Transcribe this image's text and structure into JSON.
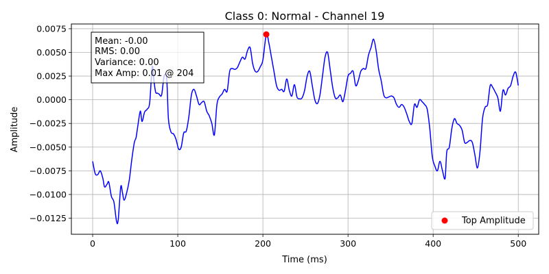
{
  "chart_data": {
    "type": "line",
    "title": "Class 0: Normal - Channel 19",
    "xlabel": "Time (ms)",
    "ylabel": "Amplitude",
    "xlim": [
      -25,
      524
    ],
    "ylim": [
      -0.0142,
      0.008
    ],
    "grid": true,
    "x_ticks": [
      0,
      100,
      200,
      300,
      400,
      500
    ],
    "x_tick_labels": [
      "0",
      "100",
      "200",
      "300",
      "400",
      "500"
    ],
    "y_ticks": [
      -0.0125,
      -0.01,
      -0.0075,
      -0.005,
      -0.0025,
      0.0,
      0.0025,
      0.005,
      0.0075
    ],
    "y_tick_labels": [
      "−0.0125",
      "−0.0100",
      "−0.0075",
      "−0.0050",
      "−0.0025",
      "0.0000",
      "0.0025",
      "0.0050",
      "0.0075"
    ],
    "line_color": "#0000ff",
    "series": [
      {
        "points": [
          [
            0,
            -0.0065
          ],
          [
            3,
            -0.0078
          ],
          [
            6,
            -0.0079
          ],
          [
            9,
            -0.0075
          ],
          [
            12,
            -0.0083
          ],
          [
            14,
            -0.0092
          ],
          [
            17,
            -0.0089
          ],
          [
            19,
            -0.0087
          ],
          [
            22,
            -0.0102
          ],
          [
            25,
            -0.0108
          ],
          [
            28,
            -0.0128
          ],
          [
            30,
            -0.0127
          ],
          [
            33,
            -0.0092
          ],
          [
            35,
            -0.0098
          ],
          [
            37,
            -0.0106
          ],
          [
            40,
            -0.0098
          ],
          [
            43,
            -0.0085
          ],
          [
            46,
            -0.0063
          ],
          [
            49,
            -0.0045
          ],
          [
            51,
            -0.004
          ],
          [
            53,
            -0.0028
          ],
          [
            56,
            -0.0012
          ],
          [
            58,
            -0.0023
          ],
          [
            61,
            -0.0013
          ],
          [
            64,
            -0.001
          ],
          [
            67,
            -0.0003
          ],
          [
            70,
            0.0035
          ],
          [
            72,
            0.002
          ],
          [
            74,
            0.0008
          ],
          [
            76,
            0.0007
          ],
          [
            78,
            0.0006
          ],
          [
            81,
            0.0005
          ],
          [
            84,
            0.0025
          ],
          [
            87,
            0.0022
          ],
          [
            89,
            -0.002
          ],
          [
            92,
            -0.0034
          ],
          [
            95,
            -0.0036
          ],
          [
            98,
            -0.0042
          ],
          [
            101,
            -0.0052
          ],
          [
            104,
            -0.005
          ],
          [
            107,
            -0.0035
          ],
          [
            110,
            -0.0033
          ],
          [
            113,
            -0.0018
          ],
          [
            116,
            0.0005
          ],
          [
            119,
            0.0011
          ],
          [
            122,
            0.0004
          ],
          [
            125,
            -0.0005
          ],
          [
            128,
            -0.0003
          ],
          [
            131,
            -0.0002
          ],
          [
            134,
            -0.0012
          ],
          [
            137,
            -0.0017
          ],
          [
            140,
            -0.0025
          ],
          [
            143,
            -0.0037
          ],
          [
            146,
            -0.0005
          ],
          [
            149,
            0.0003
          ],
          [
            152,
            0.0006
          ],
          [
            155,
            0.0011
          ],
          [
            158,
            0.0009
          ],
          [
            161,
            0.003
          ],
          [
            164,
            0.0033
          ],
          [
            167,
            0.0032
          ],
          [
            170,
            0.0034
          ],
          [
            173,
            0.004
          ],
          [
            176,
            0.0045
          ],
          [
            179,
            0.0043
          ],
          [
            182,
            0.0052
          ],
          [
            185,
            0.0055
          ],
          [
            188,
            0.0038
          ],
          [
            191,
            0.003
          ],
          [
            194,
            0.003
          ],
          [
            197,
            0.0035
          ],
          [
            200,
            0.0042
          ],
          [
            204,
            0.0069
          ],
          [
            207,
            0.006
          ],
          [
            210,
            0.0045
          ],
          [
            213,
            0.003
          ],
          [
            216,
            0.0015
          ],
          [
            219,
            0.001
          ],
          [
            222,
            0.0011
          ],
          [
            225,
            0.0009
          ],
          [
            228,
            0.0022
          ],
          [
            231,
            0.001
          ],
          [
            234,
            0.0004
          ],
          [
            237,
            0.0016
          ],
          [
            240,
            0.0003
          ],
          [
            243,
            0.0001
          ],
          [
            246,
            0.0002
          ],
          [
            249,
            0.001
          ],
          [
            252,
            0.0025
          ],
          [
            255,
            0.003
          ],
          [
            258,
            0.0015
          ],
          [
            261,
            0.0
          ],
          [
            264,
            -0.0004
          ],
          [
            267,
            0.0005
          ],
          [
            270,
            0.0025
          ],
          [
            273,
            0.0045
          ],
          [
            276,
            0.005
          ],
          [
            279,
            0.0032
          ],
          [
            282,
            0.0013
          ],
          [
            285,
            0.0002
          ],
          [
            288,
            0.0002
          ],
          [
            291,
            0.0005
          ],
          [
            294,
            -0.0002
          ],
          [
            297,
            0.001
          ],
          [
            300,
            0.0025
          ],
          [
            303,
            0.0028
          ],
          [
            306,
            0.003
          ],
          [
            309,
            0.0015
          ],
          [
            312,
            0.002
          ],
          [
            315,
            0.003
          ],
          [
            318,
            0.0033
          ],
          [
            321,
            0.0033
          ],
          [
            324,
            0.0047
          ],
          [
            327,
            0.0055
          ],
          [
            330,
            0.0064
          ],
          [
            333,
            0.0052
          ],
          [
            336,
            0.0032
          ],
          [
            339,
            0.002
          ],
          [
            342,
            0.0005
          ],
          [
            345,
            0.0002
          ],
          [
            348,
            0.0003
          ],
          [
            351,
            0.0004
          ],
          [
            354,
            0.0002
          ],
          [
            357,
            -0.0005
          ],
          [
            360,
            -0.0008
          ],
          [
            363,
            -0.0005
          ],
          [
            366,
            -0.0008
          ],
          [
            369,
            -0.0015
          ],
          [
            372,
            -0.0023
          ],
          [
            375,
            -0.0025
          ],
          [
            378,
            -0.0005
          ],
          [
            381,
            -0.0008
          ],
          [
            384,
            0.0
          ],
          [
            387,
            -0.0002
          ],
          [
            390,
            -0.0005
          ],
          [
            393,
            -0.001
          ],
          [
            396,
            -0.003
          ],
          [
            399,
            -0.006
          ],
          [
            402,
            -0.007
          ],
          [
            405,
            -0.0075
          ],
          [
            408,
            -0.0065
          ],
          [
            411,
            -0.0075
          ],
          [
            414,
            -0.0083
          ],
          [
            416,
            -0.0055
          ],
          [
            419,
            -0.005
          ],
          [
            422,
            -0.003
          ],
          [
            425,
            -0.002
          ],
          [
            428,
            -0.0025
          ],
          [
            431,
            -0.0027
          ],
          [
            434,
            -0.0032
          ],
          [
            437,
            -0.0045
          ],
          [
            440,
            -0.0045
          ],
          [
            443,
            -0.0043
          ],
          [
            446,
            -0.0045
          ],
          [
            449,
            -0.0058
          ],
          [
            452,
            -0.0072
          ],
          [
            455,
            -0.0055
          ],
          [
            458,
            -0.002
          ],
          [
            461,
            -0.0008
          ],
          [
            464,
            -0.0005
          ],
          [
            467,
            0.0015
          ],
          [
            470,
            0.0013
          ],
          [
            473,
            0.0008
          ],
          [
            476,
            0.0002
          ],
          [
            479,
            -0.0012
          ],
          [
            482,
            0.001
          ],
          [
            485,
            0.0005
          ],
          [
            488,
            0.0012
          ],
          [
            491,
            0.0015
          ],
          [
            494,
            0.0025
          ],
          [
            497,
            0.0029
          ],
          [
            500,
            0.0015
          ]
        ]
      }
    ],
    "highlight_point": {
      "x": 204,
      "y": 0.0069,
      "color": "#ff0000"
    },
    "legend": {
      "placement": "lower-right",
      "entries": [
        {
          "label": "Top Amplitude",
          "color": "#ff0000"
        }
      ]
    },
    "stats_box": {
      "lines": [
        "Mean: -0.00",
        "RMS: 0.00",
        "Variance: 0.00",
        "Max Amp: 0.01 @ 204"
      ]
    }
  }
}
